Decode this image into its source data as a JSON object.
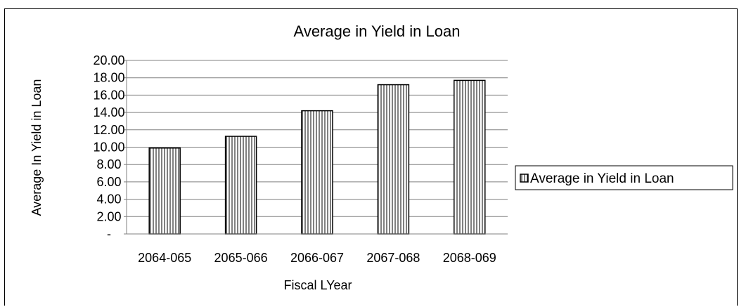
{
  "chart_data": {
    "type": "bar",
    "title": "Average in Yield in Loan",
    "xlabel": "Fiscal LYear",
    "ylabel": "Average In Yield in Loan",
    "categories": [
      "2064-065",
      "2065-066",
      "2066-067",
      "2067-068",
      "2068-069"
    ],
    "series": [
      {
        "name": "Average in Yield in Loan",
        "values": [
          9.9,
          11.25,
          14.2,
          17.2,
          17.7
        ]
      }
    ],
    "ylim": [
      0,
      20
    ],
    "yticks": [
      "-",
      "2.00",
      "4.00",
      "6.00",
      "8.00",
      "10.00",
      "12.00",
      "14.00",
      "16.00",
      "18.00",
      "20.00"
    ],
    "grid": true,
    "legend": "right",
    "bar_fill": "vertical-hatch",
    "colors": {
      "bar_stroke": "#000000",
      "hatch": "#000000",
      "grid": "#808080"
    }
  }
}
